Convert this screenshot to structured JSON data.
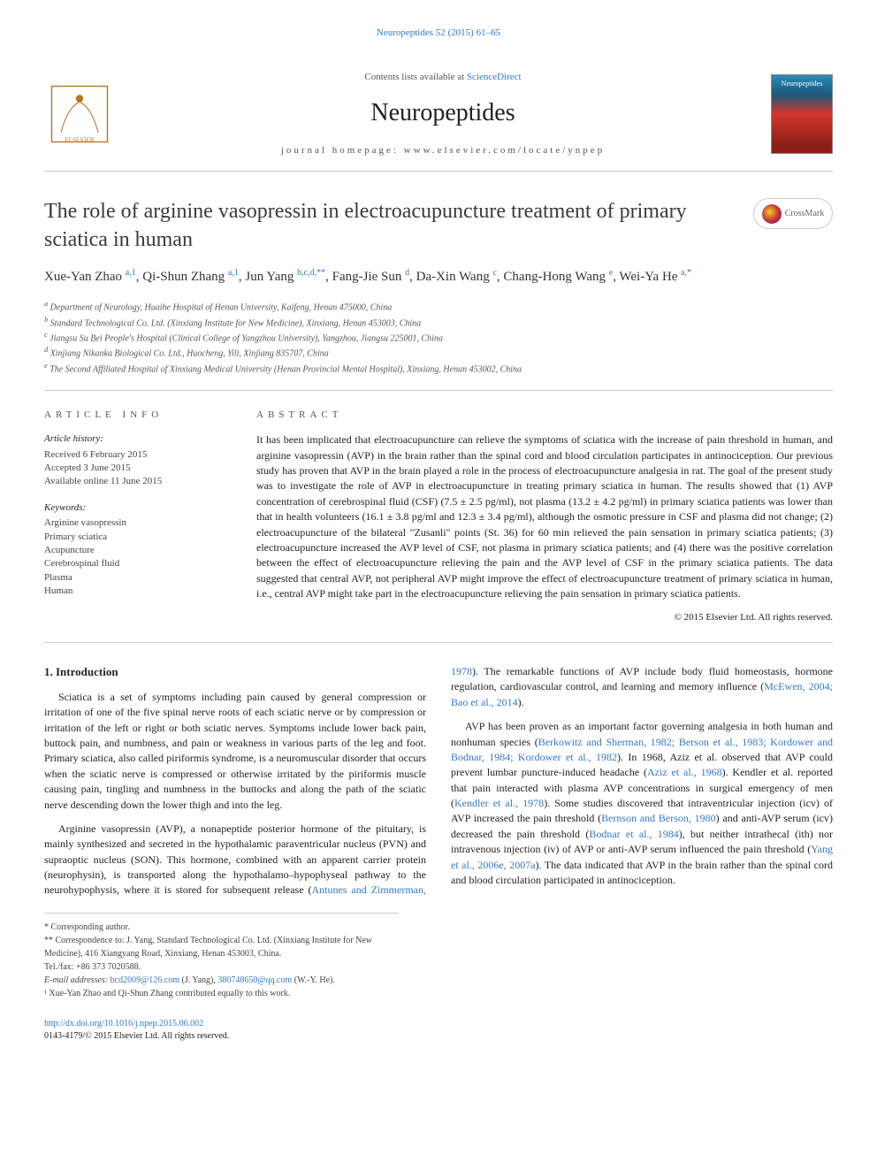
{
  "breadcrumb": "Neuropeptides 52 (2015) 61–65",
  "header": {
    "contents_prefix": "Contents lists available at ",
    "contents_link": "ScienceDirect",
    "journal": "Neuropeptides",
    "homepage": "journal homepage: www.elsevier.com/locate/ynpep",
    "cover_label": "Neuropeptides"
  },
  "crossmark": "CrossMark",
  "title": "The role of arginine vasopressin in electroacupuncture treatment of primary sciatica in human",
  "authors_html": "Xue-Yan Zhao <span class='sup'>a,1</span>, Qi-Shun Zhang <span class='sup'>a,1</span>, Jun Yang <span class='sup'>b,c,d,**</span>, Fang-Jie Sun <span class='sup'>d</span>, Da-Xin Wang <span class='sup'>c</span>, Chang-Hong Wang <span class='sup'>e</span>, Wei-Ya He <span class='sup'>a,*</span>",
  "affiliations": [
    "a Department of Neurology, Huaihe Hospital of Henan University, Kaifeng, Henan 475000, China",
    "b Standard Technological Co. Ltd. (Xinxiang Institute for New Medicine), Xinxiang, Henan 453003, China",
    "c Jiangsu Su Bei People's Hospital (Clinical College of Yangzhou University), Yangzhou, Jiangsu 225001, China",
    "d Xinjiang Nikanka Biological Co. Ltd., Huocheng, Yili, Xinjiang 835707, China",
    "e The Second Affiliated Hospital of Xinxiang Medical University (Henan Provincial Mental Hospital), Xinxiang, Henan 453002, China"
  ],
  "article_info": {
    "label": "ARTICLE INFO",
    "history_label": "Article history:",
    "history": [
      "Received 6 February 2015",
      "Accepted 3 June 2015",
      "Available online 11 June 2015"
    ],
    "keywords_label": "Keywords:",
    "keywords": [
      "Arginine vasopressin",
      "Primary sciatica",
      "Acupuncture",
      "Cerebrospinal fluid",
      "Plasma",
      "Human"
    ]
  },
  "abstract": {
    "label": "ABSTRACT",
    "text": "It has been implicated that electroacupuncture can relieve the symptoms of sciatica with the increase of pain threshold in human, and arginine vasopressin (AVP) in the brain rather than the spinal cord and blood circulation participates in antinociception. Our previous study has proven that AVP in the brain played a role in the process of electroacupuncture analgesia in rat. The goal of the present study was to investigate the role of AVP in electroacupuncture in treating primary sciatica in human. The results showed that (1) AVP concentration of cerebrospinal fluid (CSF) (7.5 ± 2.5 pg/ml), not plasma (13.2 ± 4.2 pg/ml) in primary sciatica patients was lower than that in health volunteers (16.1 ± 3.8 pg/ml and 12.3 ± 3.4 pg/ml), although the osmotic pressure in CSF and plasma did not change; (2) electroacupuncture of the bilateral \"Zusanli\" points (St. 36) for 60 min relieved the pain sensation in primary sciatica patients; (3) electroacupuncture increased the AVP level of CSF, not plasma in primary sciatica patients; and (4) there was the positive correlation between the effect of electroacupuncture relieving the pain and the AVP level of CSF in the primary sciatica patients. The data suggested that central AVP, not peripheral AVP might improve the effect of electroacupuncture treatment of primary sciatica in human, i.e., central AVP might take part in the electroacupuncture relieving the pain sensation in primary sciatica patients.",
    "copyright": "© 2015 Elsevier Ltd. All rights reserved."
  },
  "intro": {
    "heading": "1. Introduction",
    "p1": "Sciatica is a set of symptoms including pain caused by general compression or irritation of one of the five spinal nerve roots of each sciatic nerve or by compression or irritation of the left or right or both sciatic nerves. Symptoms include lower back pain, buttock pain, and numbness, and pain or weakness in various parts of the leg and foot. Primary sciatica, also called piriformis syndrome, is a neuromuscular disorder that occurs when the sciatic nerve is compressed or otherwise irritated by the piriformis muscle causing pain, tingling and numbness in the buttocks and along the path of the sciatic nerve descending down the lower thigh and into the leg.",
    "p2_a": "Arginine vasopressin (AVP), a nonapeptide posterior hormone of the pituitary, is mainly synthesized and secreted in the hypothalamic ",
    "p2_b": "paraventricular nucleus (PVN) and supraoptic nucleus (SON). This hormone, combined with an apparent carrier protein (neurophysin), is transported along the hypothalamo–hypophyseal pathway to the neurohypophysis, where it is stored for subsequent release (",
    "p2_cite1": "Antunes and Zimmerman, 1978",
    "p2_c": "). The remarkable functions of AVP include body fluid homeostasis, hormone regulation, cardiovascular control, and learning and memory influence (",
    "p2_cite2": "McEwen, 2004; Bao et al., 2014",
    "p2_d": ").",
    "p3_a": "AVP has been proven as an important factor governing analgesia in both human and nonhuman species (",
    "p3_cite1": "Berkowitz and Sherman, 1982; Berson et al., 1983; Kordower and Bodnar, 1984; Kordower et al., 1982",
    "p3_b": "). In 1968, Aziz et al. observed that AVP could prevent lumbar puncture-induced headache (",
    "p3_cite2": "Aziz et al., 1968",
    "p3_c": "). Kendler et al. reported that pain interacted with plasma AVP concentrations in surgical emergency of men (",
    "p3_cite3": "Kendler et al., 1978",
    "p3_d": "). Some studies discovered that intraventricular injection (icv) of AVP increased the pain threshold (",
    "p3_cite4": "Bernson and Berson, 1980",
    "p3_e": ") and anti-AVP serum (icv) decreased the pain threshold (",
    "p3_cite5": "Bodnar et al., 1984",
    "p3_f": "), but neither intrathecal (ith) nor intravenous injection (iv) of AVP or anti-AVP serum influenced the pain threshold (",
    "p3_cite6": "Yang et al., 2006e, 2007a",
    "p3_g": "). The data indicated that AVP in the brain rather than the spinal cord and blood circulation participated in antinociception."
  },
  "footnotes": {
    "corr1": "* Corresponding author.",
    "corr2": "** Correspondence to: J. Yang, Standard Technological Co. Ltd. (Xinxiang Institute for New Medicine), 416 Xiangyang Road, Xinxiang, Henan 453003, China.",
    "tel": "Tel./fax: +86 373 7020588.",
    "email_label": "E-mail addresses: ",
    "email1": "bcd2009@126.com",
    "email1_who": " (J. Yang), ",
    "email2": "380748650@qq.com",
    "email2_who": " (W.-Y. He).",
    "note1": "¹ Xue-Yan Zhao and Qi-Shun Zhang contributed equally to this work."
  },
  "footer": {
    "doi": "http://dx.doi.org/10.1016/j.npep.2015.06.002",
    "issn": "0143-4179/© 2015 Elsevier Ltd. All rights reserved."
  },
  "colors": {
    "link": "#3478c5",
    "text": "#222",
    "muted": "#555",
    "rule": "#ccc"
  },
  "typography": {
    "body_pt": 12,
    "title_pt": 24,
    "journal_pt": 28,
    "small_pt": 11,
    "tiny_pt": 10
  }
}
